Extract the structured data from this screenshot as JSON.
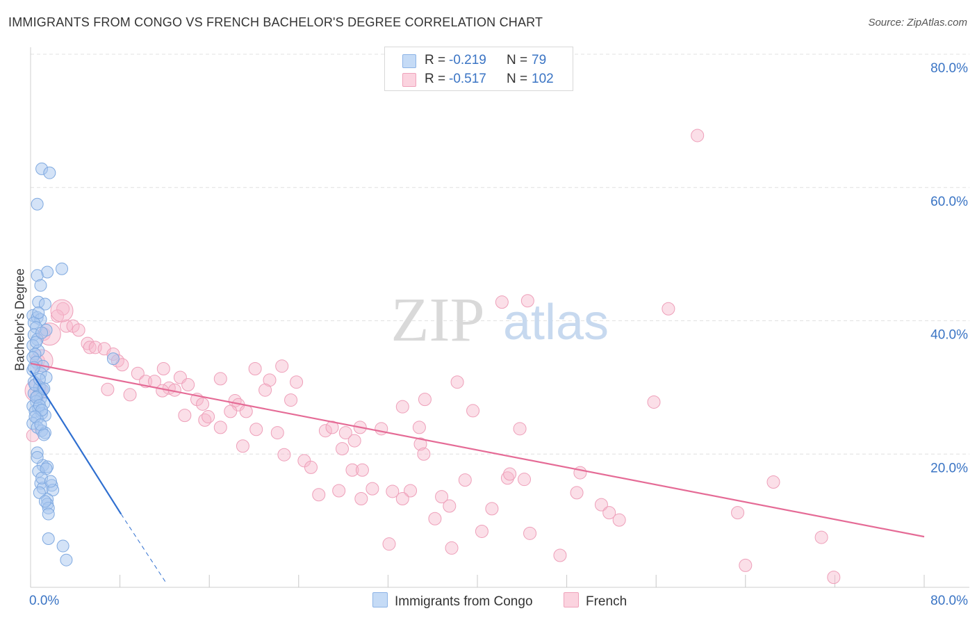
{
  "header": {
    "title": "IMMIGRANTS FROM CONGO VS FRENCH BACHELOR'S DEGREE CORRELATION CHART",
    "source": "Source: ZipAtlas.com"
  },
  "watermark": {
    "zip": "ZIP",
    "atlas": "atlas"
  },
  "legend": {
    "rows": [
      {
        "r_label": "R =",
        "r_value": "-0.219",
        "n_label": "N =",
        "n_value": "79",
        "color": "#a9c8f0"
      },
      {
        "r_label": "R =",
        "r_value": "-0.517",
        "n_label": "N =",
        "n_value": "102",
        "color": "#f6b7cb"
      }
    ]
  },
  "bottom_legend": {
    "series1": "Immigrants from Congo",
    "series2": "French"
  },
  "chart_data": {
    "type": "scatter",
    "title": "IMMIGRANTS FROM CONGO VS FRENCH BACHELOR'S DEGREE CORRELATION CHART",
    "xlabel": "",
    "ylabel": "Bachelor's Degree",
    "xlim": [
      0,
      80
    ],
    "ylim": [
      0,
      80
    ],
    "x_tick_labels": [
      "0.0%",
      "80.0%"
    ],
    "y_tick_labels": [
      "20.0%",
      "40.0%",
      "60.0%",
      "80.0%"
    ],
    "y_ticks": [
      20,
      40,
      60,
      80
    ],
    "series": [
      {
        "name": "Immigrants from Congo",
        "color": "#5b93d8",
        "fill": "#a9c8f0",
        "trend": {
          "x0": 0.0,
          "y0": 32.5,
          "x1": 8.1,
          "y1": 11.0,
          "dash_to_x": 12.2,
          "dash_to_y": 0.5
        },
        "points": [
          [
            1.0,
            62.8
          ],
          [
            1.7,
            62.2
          ],
          [
            0.6,
            57.5
          ],
          [
            2.8,
            47.8
          ],
          [
            1.5,
            47.3
          ],
          [
            0.6,
            46.8
          ],
          [
            0.9,
            45.3
          ],
          [
            0.7,
            42.8
          ],
          [
            1.3,
            42.5
          ],
          [
            0.2,
            40.8
          ],
          [
            0.6,
            40.5
          ],
          [
            0.9,
            40.2
          ],
          [
            0.3,
            39.7
          ],
          [
            0.5,
            39.0
          ],
          [
            1.4,
            38.6
          ],
          [
            0.3,
            37.9
          ],
          [
            0.6,
            37.2
          ],
          [
            0.2,
            36.3
          ],
          [
            0.7,
            35.5
          ],
          [
            0.4,
            35.0
          ],
          [
            0.2,
            34.5
          ],
          [
            0.5,
            33.8
          ],
          [
            1.1,
            33.2
          ],
          [
            0.2,
            32.6
          ],
          [
            0.9,
            32.1
          ],
          [
            1.4,
            31.5
          ],
          [
            0.3,
            30.8
          ],
          [
            0.8,
            30.0
          ],
          [
            1.1,
            29.6
          ],
          [
            0.3,
            29.1
          ],
          [
            0.6,
            28.7
          ],
          [
            0.9,
            28.3
          ],
          [
            0.5,
            27.9
          ],
          [
            1.2,
            27.6
          ],
          [
            0.2,
            27.2
          ],
          [
            0.7,
            26.9
          ],
          [
            0.4,
            26.4
          ],
          [
            1.0,
            26.1
          ],
          [
            1.3,
            25.8
          ],
          [
            0.6,
            25.3
          ],
          [
            0.2,
            24.6
          ],
          [
            0.6,
            24.0
          ],
          [
            1.0,
            23.5
          ],
          [
            1.3,
            23.2
          ],
          [
            0.6,
            20.2
          ],
          [
            1.1,
            18.3
          ],
          [
            1.5,
            18.1
          ],
          [
            0.7,
            17.4
          ],
          [
            0.9,
            15.6
          ],
          [
            1.9,
            15.3
          ],
          [
            1.1,
            14.9
          ],
          [
            2.0,
            14.6
          ],
          [
            1.5,
            13.2
          ],
          [
            1.5,
            12.5
          ],
          [
            1.6,
            11.9
          ],
          [
            1.6,
            11.0
          ],
          [
            1.6,
            7.3
          ],
          [
            2.9,
            6.2
          ],
          [
            3.2,
            4.1
          ],
          [
            7.4,
            34.3
          ],
          [
            0.5,
            28.5
          ],
          [
            0.8,
            27.3
          ],
          [
            1.0,
            26.6
          ],
          [
            0.4,
            30.4
          ],
          [
            0.8,
            31.2
          ],
          [
            1.2,
            29.8
          ],
          [
            0.3,
            33.0
          ],
          [
            0.5,
            36.8
          ],
          [
            1.0,
            38.2
          ],
          [
            0.7,
            41.2
          ],
          [
            0.4,
            25.6
          ],
          [
            0.9,
            24.4
          ],
          [
            1.2,
            22.9
          ],
          [
            0.6,
            19.5
          ],
          [
            1.4,
            17.8
          ],
          [
            1.0,
            16.4
          ],
          [
            1.8,
            15.9
          ],
          [
            0.8,
            14.2
          ],
          [
            1.3,
            12.9
          ]
        ]
      },
      {
        "name": "French",
        "color": "#e56b96",
        "fill": "#f6b7cb",
        "trend": {
          "x0": 0.0,
          "y0": 33.6,
          "x1": 80.0,
          "y1": 7.6
        },
        "points": [
          [
            59.7,
            67.8
          ],
          [
            2.9,
            41.8
          ],
          [
            42.2,
            42.8
          ],
          [
            44.5,
            43.0
          ],
          [
            57.1,
            41.8
          ],
          [
            2.4,
            40.7
          ],
          [
            3.2,
            39.2
          ],
          [
            3.8,
            39.2
          ],
          [
            4.3,
            38.6
          ],
          [
            1.2,
            38.0
          ],
          [
            5.1,
            36.6
          ],
          [
            5.3,
            36.0
          ],
          [
            5.8,
            36.0
          ],
          [
            6.6,
            35.8
          ],
          [
            7.4,
            35.0
          ],
          [
            7.8,
            34.0
          ],
          [
            0.7,
            34.0
          ],
          [
            8.2,
            33.4
          ],
          [
            11.9,
            32.8
          ],
          [
            20.1,
            32.8
          ],
          [
            22.5,
            33.2
          ],
          [
            9.6,
            32.1
          ],
          [
            13.4,
            31.5
          ],
          [
            17.0,
            31.3
          ],
          [
            21.4,
            31.1
          ],
          [
            23.8,
            30.8
          ],
          [
            10.3,
            30.9
          ],
          [
            11.1,
            30.9
          ],
          [
            14.1,
            30.4
          ],
          [
            38.2,
            30.8
          ],
          [
            6.9,
            29.7
          ],
          [
            12.4,
            29.9
          ],
          [
            11.8,
            29.5
          ],
          [
            12.9,
            29.6
          ],
          [
            21.0,
            29.6
          ],
          [
            0.8,
            29.4
          ],
          [
            8.9,
            28.9
          ],
          [
            14.9,
            28.2
          ],
          [
            18.3,
            28.0
          ],
          [
            23.3,
            28.1
          ],
          [
            35.3,
            28.2
          ],
          [
            15.4,
            27.5
          ],
          [
            18.6,
            27.4
          ],
          [
            33.3,
            27.1
          ],
          [
            55.8,
            27.8
          ],
          [
            13.8,
            25.8
          ],
          [
            17.9,
            26.4
          ],
          [
            19.3,
            26.4
          ],
          [
            39.6,
            26.5
          ],
          [
            15.6,
            25.1
          ],
          [
            17.0,
            24.0
          ],
          [
            20.2,
            23.7
          ],
          [
            22.1,
            23.2
          ],
          [
            26.4,
            23.5
          ],
          [
            27.0,
            24.0
          ],
          [
            28.2,
            23.2
          ],
          [
            29.5,
            24.0
          ],
          [
            31.4,
            23.8
          ],
          [
            34.8,
            24.0
          ],
          [
            43.8,
            23.8
          ],
          [
            0.2,
            22.8
          ],
          [
            19.0,
            21.2
          ],
          [
            27.9,
            20.8
          ],
          [
            34.9,
            21.5
          ],
          [
            22.7,
            19.9
          ],
          [
            24.5,
            19.0
          ],
          [
            25.1,
            18.0
          ],
          [
            35.2,
            20.0
          ],
          [
            44.2,
            16.2
          ],
          [
            28.8,
            17.6
          ],
          [
            29.7,
            17.6
          ],
          [
            38.9,
            16.1
          ],
          [
            42.7,
            16.4
          ],
          [
            42.9,
            17.0
          ],
          [
            49.2,
            17.2
          ],
          [
            66.5,
            15.8
          ],
          [
            30.6,
            14.8
          ],
          [
            32.4,
            14.4
          ],
          [
            34.0,
            14.5
          ],
          [
            25.8,
            13.9
          ],
          [
            27.6,
            14.5
          ],
          [
            29.6,
            13.3
          ],
          [
            33.3,
            13.3
          ],
          [
            36.8,
            13.6
          ],
          [
            48.9,
            14.2
          ],
          [
            51.1,
            12.4
          ],
          [
            37.5,
            12.2
          ],
          [
            41.3,
            11.8
          ],
          [
            51.8,
            11.2
          ],
          [
            52.7,
            10.1
          ],
          [
            36.2,
            10.3
          ],
          [
            63.3,
            11.2
          ],
          [
            40.4,
            8.4
          ],
          [
            44.7,
            8.1
          ],
          [
            70.8,
            7.5
          ],
          [
            32.1,
            6.5
          ],
          [
            37.7,
            5.9
          ],
          [
            47.4,
            4.8
          ],
          [
            64.0,
            3.3
          ],
          [
            71.9,
            1.5
          ],
          [
            15.9,
            25.6
          ],
          [
            29.0,
            22.0
          ]
        ],
        "big_points": [
          [
            2.8,
            41.5
          ],
          [
            1.7,
            38.0
          ],
          [
            1.0,
            34.0
          ],
          [
            0.5,
            29.5
          ]
        ]
      }
    ]
  }
}
